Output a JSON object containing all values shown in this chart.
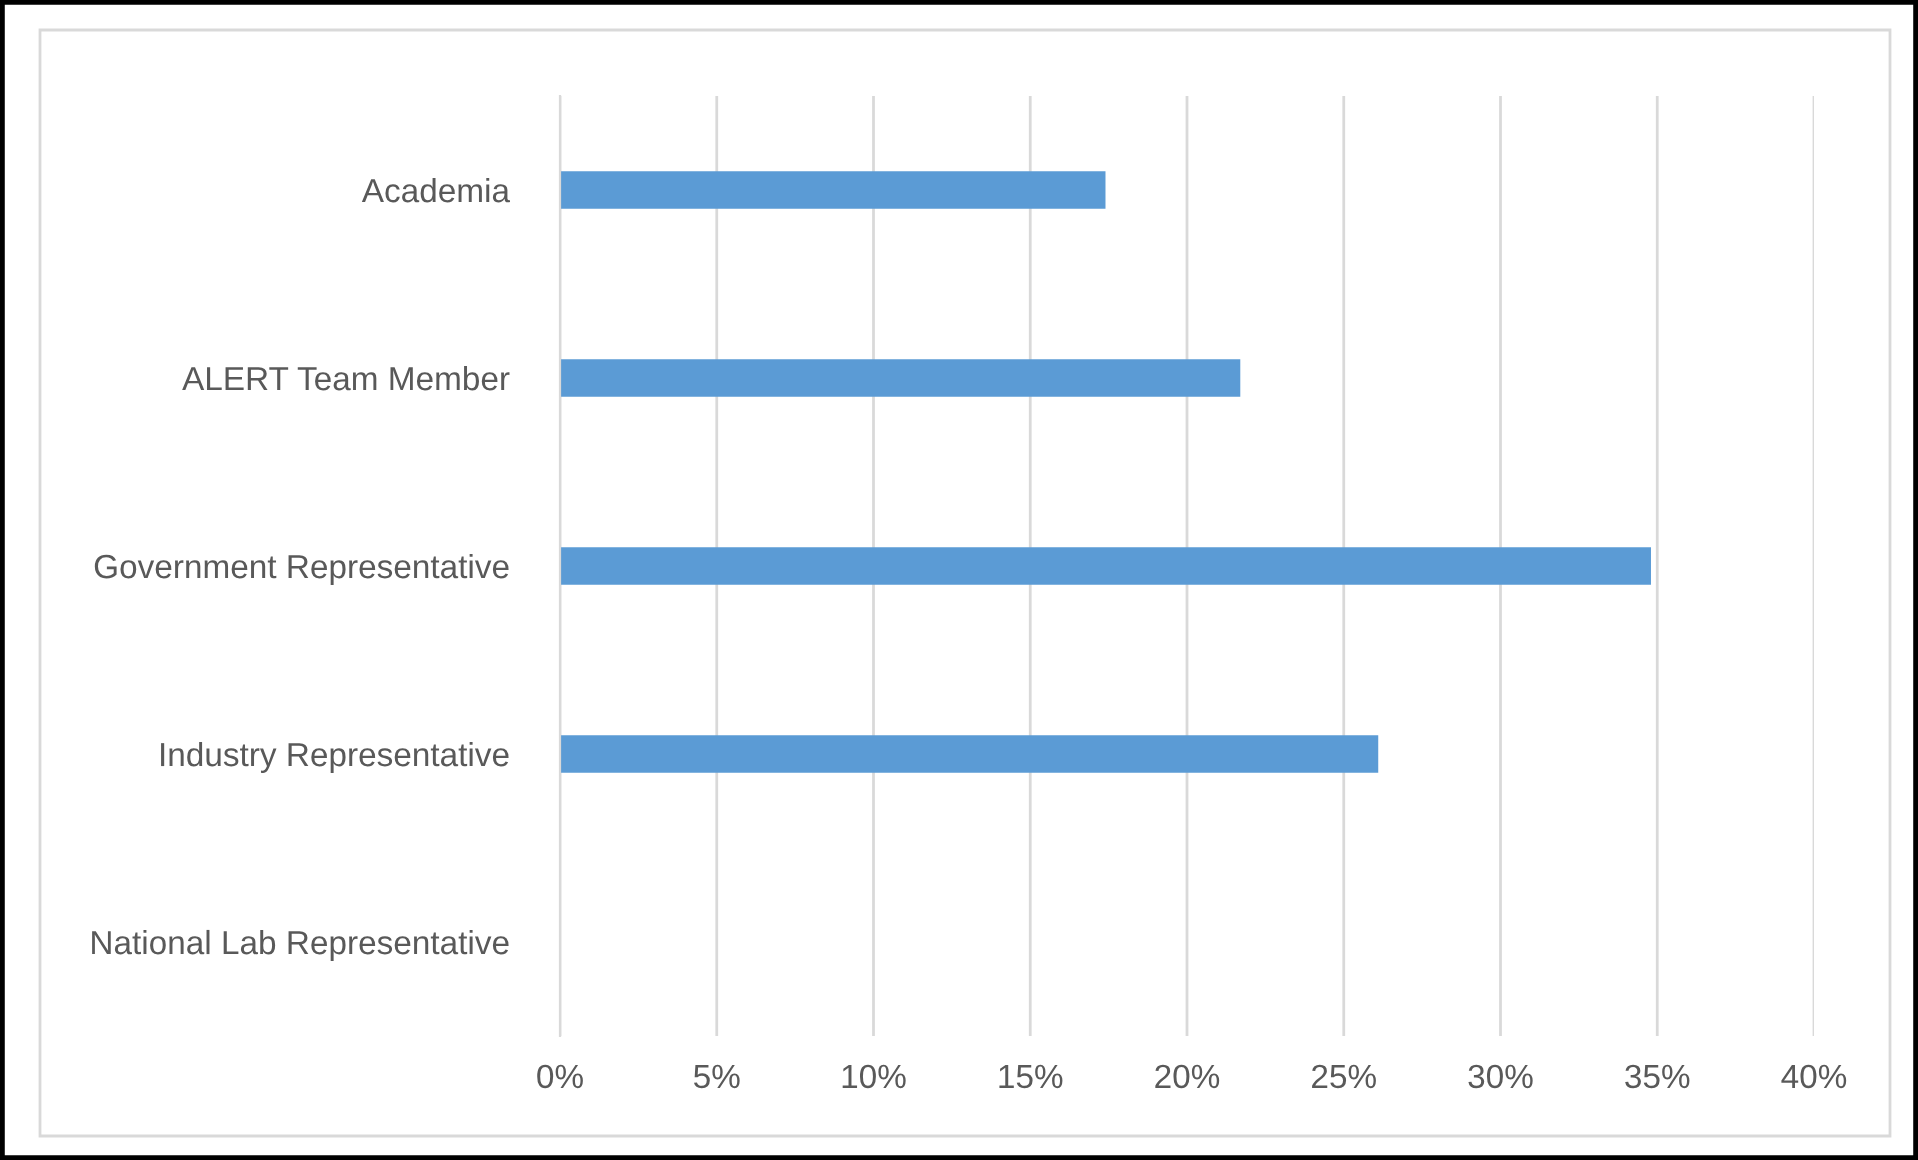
{
  "chart_data": {
    "type": "bar",
    "orientation": "horizontal",
    "categories": [
      "Academia",
      "ALERT Team Member",
      "Government Representative",
      "Industry Representative",
      "National Lab Representative"
    ],
    "values": [
      17.4,
      21.7,
      34.8,
      26.1,
      0
    ],
    "color": "#5b9bd5",
    "xlim": [
      0,
      40
    ],
    "xticks": [
      {
        "value": 0,
        "label": "0%"
      },
      {
        "value": 5,
        "label": "5%"
      },
      {
        "value": 10,
        "label": "10%"
      },
      {
        "value": 15,
        "label": "15%"
      },
      {
        "value": 20,
        "label": "20%"
      },
      {
        "value": 25,
        "label": "25%"
      },
      {
        "value": 30,
        "label": "30%"
      },
      {
        "value": 35,
        "label": "35%"
      },
      {
        "value": 40,
        "label": "40%"
      }
    ],
    "grid": "x",
    "legend": false
  }
}
